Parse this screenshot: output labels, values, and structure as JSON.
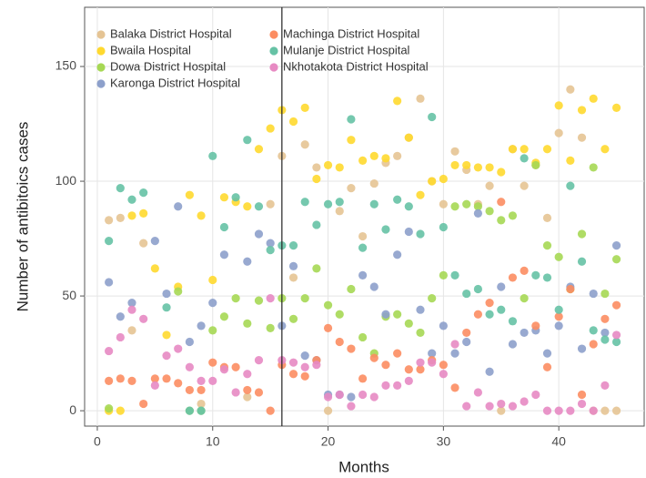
{
  "chart_data": {
    "type": "scatter",
    "x_label": "Months",
    "y_label": "Number of antibitoics cases",
    "xlim": [
      -1.1,
      47.4
    ],
    "ylim": [
      -6.7,
      175.8
    ],
    "xticks": [
      0,
      10,
      20,
      30,
      40
    ],
    "yticks": [
      0,
      50,
      100,
      150
    ],
    "grid": true,
    "legend_position": "top-left",
    "vline": 16,
    "x": [
      1,
      2,
      3,
      4,
      5,
      6,
      7,
      8,
      9,
      10,
      11,
      12,
      13,
      14,
      15,
      16,
      17,
      18,
      19,
      20,
      21,
      22,
      23,
      24,
      25,
      26,
      27,
      28,
      29,
      30,
      31,
      32,
      33,
      34,
      35,
      36,
      37,
      38,
      39,
      40,
      41,
      42,
      43,
      44,
      45
    ],
    "series": [
      {
        "name": "Balaka District Hospital",
        "color": "#e5c494",
        "values": [
          83,
          84,
          35,
          73,
          null,
          null,
          null,
          null,
          3,
          null,
          null,
          null,
          6,
          null,
          90,
          111,
          58,
          116,
          106,
          0,
          87,
          97,
          76,
          99,
          108,
          111,
          119,
          136,
          100,
          90,
          113,
          105,
          90,
          98,
          0,
          114,
          98,
          107,
          84,
          121,
          140,
          119,
          0,
          0,
          0
        ]
      },
      {
        "name": "Bwaila Hospital",
        "color": "#ffd92f",
        "values": [
          0,
          0,
          85,
          86,
          62,
          33,
          54,
          94,
          85,
          57,
          93,
          91,
          89,
          114,
          123,
          131,
          126,
          132,
          101,
          107,
          106,
          118,
          109,
          111,
          110,
          135,
          119,
          94,
          100,
          101,
          107,
          107,
          106,
          106,
          104,
          114,
          114,
          108,
          114,
          133,
          109,
          131,
          136,
          114,
          132
        ]
      },
      {
        "name": "Dowa District Hospital",
        "color": "#a6d854",
        "values": [
          1,
          null,
          null,
          null,
          null,
          null,
          52,
          0,
          0,
          35,
          41,
          49,
          38,
          48,
          36,
          49,
          40,
          49,
          62,
          46,
          42,
          53,
          32,
          25,
          41,
          42,
          38,
          34,
          49,
          59,
          89,
          90,
          89,
          87,
          83,
          85,
          49,
          107,
          72,
          67,
          53,
          77,
          106,
          51,
          66
        ]
      },
      {
        "name": "Karonga District Hospital",
        "color": "#8da0cb",
        "values": [
          56,
          41,
          47,
          null,
          74,
          51,
          89,
          30,
          37,
          47,
          68,
          null,
          65,
          77,
          73,
          37,
          63,
          24,
          22,
          7,
          7,
          6,
          59,
          54,
          42,
          68,
          78,
          44,
          25,
          37,
          25,
          30,
          86,
          17,
          54,
          29,
          34,
          35,
          25,
          37,
          54,
          27,
          51,
          34,
          72
        ]
      },
      {
        "name": "Machinga District Hospital",
        "color": "#fc8d62",
        "values": [
          13,
          14,
          13,
          3,
          14,
          14,
          12,
          9,
          9,
          21,
          19,
          19,
          9,
          8,
          0,
          20,
          16,
          15,
          22,
          36,
          30,
          27,
          14,
          23,
          20,
          25,
          18,
          18,
          22,
          20,
          10,
          34,
          42,
          47,
          91,
          58,
          61,
          37,
          19,
          41,
          53,
          7,
          29,
          40,
          46
        ]
      },
      {
        "name": "Mulanje District Hospital",
        "color": "#66c2a5",
        "values": [
          74,
          97,
          92,
          95,
          null,
          45,
          null,
          0,
          0,
          111,
          80,
          93,
          118,
          89,
          70,
          72,
          72,
          91,
          81,
          90,
          91,
          127,
          71,
          90,
          79,
          92,
          89,
          77,
          128,
          80,
          59,
          51,
          53,
          42,
          44,
          39,
          110,
          59,
          58,
          44,
          98,
          65,
          35,
          31,
          30
        ]
      },
      {
        "name": "Nkhotakota District Hospital",
        "color": "#e78ac3",
        "values": [
          26,
          32,
          44,
          40,
          11,
          24,
          27,
          19,
          13,
          13,
          18,
          8,
          16,
          22,
          49,
          22,
          21,
          19,
          20,
          6,
          7,
          2,
          7,
          6,
          11,
          11,
          13,
          21,
          21,
          16,
          29,
          2,
          8,
          2,
          3,
          2,
          4,
          7,
          0,
          0,
          0,
          3,
          0,
          11,
          33
        ]
      }
    ]
  }
}
